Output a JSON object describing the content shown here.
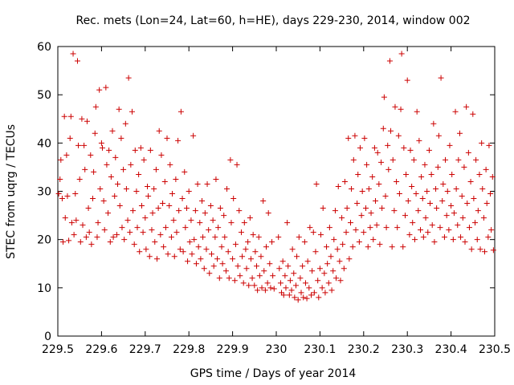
{
  "chart_data": {
    "type": "scatter",
    "title": "Rec. mets (Lon=24, Lat=60, h=HE), days 229-230, 2014, window 002",
    "xlabel": "GPS time / Days of year 2014",
    "ylabel": "STEC from uqrg / TECUs",
    "xlim": [
      229.5,
      230.5
    ],
    "ylim": [
      0,
      60
    ],
    "xticks": [
      "229.5",
      "229.6",
      "229.7",
      "229.8",
      "229.9",
      "230",
      "230.1",
      "230.2",
      "230.3",
      "230.4",
      "230.5"
    ],
    "yticks": [
      "0",
      "10",
      "20",
      "30",
      "40",
      "50",
      "60"
    ],
    "grid": false,
    "legend": "none",
    "marker": "plus",
    "color": "#cc0000",
    "points": [
      [
        229.502,
        29.5
      ],
      [
        229.505,
        32.5
      ],
      [
        229.507,
        36.5
      ],
      [
        229.51,
        28.5
      ],
      [
        229.512,
        19.5
      ],
      [
        229.515,
        45.5
      ],
      [
        229.517,
        24.5
      ],
      [
        229.52,
        37.5
      ],
      [
        229.522,
        29.0
      ],
      [
        229.525,
        19.8
      ],
      [
        229.528,
        41.0
      ],
      [
        229.53,
        45.5
      ],
      [
        229.532,
        23.5
      ],
      [
        229.535,
        58.5
      ],
      [
        229.537,
        21.0
      ],
      [
        229.54,
        29.5
      ],
      [
        229.542,
        24.0
      ],
      [
        229.545,
        57.0
      ],
      [
        229.547,
        39.5
      ],
      [
        229.55,
        32.5
      ],
      [
        229.552,
        19.5
      ],
      [
        229.555,
        45.0
      ],
      [
        229.557,
        23.0
      ],
      [
        229.56,
        39.5
      ],
      [
        229.562,
        34.5
      ],
      [
        229.565,
        20.5
      ],
      [
        229.567,
        44.5
      ],
      [
        229.57,
        26.5
      ],
      [
        229.572,
        21.5
      ],
      [
        229.575,
        37.5
      ],
      [
        229.577,
        19.0
      ],
      [
        229.58,
        28.5
      ],
      [
        229.582,
        34.0
      ],
      [
        229.585,
        42.0
      ],
      [
        229.587,
        47.5
      ],
      [
        229.59,
        20.5
      ],
      [
        229.592,
        23.5
      ],
      [
        229.595,
        51.0
      ],
      [
        229.597,
        30.5
      ],
      [
        229.6,
        40.0
      ],
      [
        229.602,
        39.0
      ],
      [
        229.605,
        28.0
      ],
      [
        229.607,
        22.0
      ],
      [
        229.61,
        51.5
      ],
      [
        229.612,
        35.5
      ],
      [
        229.615,
        25.5
      ],
      [
        229.617,
        38.5
      ],
      [
        229.62,
        19.5
      ],
      [
        229.622,
        33.0
      ],
      [
        229.625,
        42.5
      ],
      [
        229.627,
        20.5
      ],
      [
        229.63,
        29.0
      ],
      [
        229.632,
        37.0
      ],
      [
        229.635,
        21.0
      ],
      [
        229.637,
        31.5
      ],
      [
        229.64,
        47.0
      ],
      [
        229.642,
        27.0
      ],
      [
        229.645,
        41.0
      ],
      [
        229.647,
        22.5
      ],
      [
        229.65,
        34.5
      ],
      [
        229.652,
        20.0
      ],
      [
        229.655,
        44.0
      ],
      [
        229.657,
        30.5
      ],
      [
        229.66,
        24.0
      ],
      [
        229.662,
        53.5
      ],
      [
        229.665,
        21.5
      ],
      [
        229.667,
        35.5
      ],
      [
        229.67,
        46.5
      ],
      [
        229.672,
        26.0
      ],
      [
        229.675,
        19.0
      ],
      [
        229.677,
        38.5
      ],
      [
        229.68,
        30.0
      ],
      [
        229.682,
        22.5
      ],
      [
        229.685,
        33.5
      ],
      [
        229.687,
        17.5
      ],
      [
        229.69,
        39.0
      ],
      [
        229.692,
        27.0
      ],
      [
        229.695,
        21.5
      ],
      [
        229.697,
        36.5
      ],
      [
        229.7,
        24.5
      ],
      [
        229.702,
        18.0
      ],
      [
        229.705,
        31.0
      ],
      [
        229.707,
        29.0
      ],
      [
        229.71,
        16.5
      ],
      [
        229.712,
        38.5
      ],
      [
        229.715,
        22.0
      ],
      [
        229.717,
        25.5
      ],
      [
        229.72,
        30.5
      ],
      [
        229.722,
        19.5
      ],
      [
        229.725,
        34.5
      ],
      [
        229.727,
        16.0
      ],
      [
        229.73,
        26.5
      ],
      [
        229.732,
        42.5
      ],
      [
        229.735,
        21.0
      ],
      [
        229.737,
        37.5
      ],
      [
        229.74,
        27.5
      ],
      [
        229.742,
        18.5
      ],
      [
        229.745,
        32.0
      ],
      [
        229.747,
        22.5
      ],
      [
        229.75,
        41.0
      ],
      [
        229.752,
        17.0
      ],
      [
        229.755,
        27.0
      ],
      [
        229.757,
        35.5
      ],
      [
        229.76,
        20.5
      ],
      [
        229.762,
        29.5
      ],
      [
        229.765,
        24.0
      ],
      [
        229.767,
        16.5
      ],
      [
        229.77,
        32.5
      ],
      [
        229.772,
        21.5
      ],
      [
        229.775,
        40.5
      ],
      [
        229.777,
        26.0
      ],
      [
        229.78,
        18.0
      ],
      [
        229.782,
        46.5
      ],
      [
        229.785,
        28.5
      ],
      [
        229.787,
        17.5
      ],
      [
        229.79,
        34.0
      ],
      [
        229.792,
        22.5
      ],
      [
        229.795,
        26.5
      ],
      [
        229.797,
        15.5
      ],
      [
        229.8,
        30.0
      ],
      [
        229.802,
        19.5
      ],
      [
        229.805,
        24.0
      ],
      [
        229.807,
        17.0
      ],
      [
        229.81,
        41.5
      ],
      [
        229.812,
        20.0
      ],
      [
        229.815,
        26.0
      ],
      [
        229.817,
        15.0
      ],
      [
        229.82,
        31.5
      ],
      [
        229.822,
        18.5
      ],
      [
        229.825,
        23.5
      ],
      [
        229.827,
        16.0
      ],
      [
        229.83,
        28.0
      ],
      [
        229.832,
        20.5
      ],
      [
        229.835,
        14.0
      ],
      [
        229.837,
        25.5
      ],
      [
        229.84,
        18.0
      ],
      [
        229.842,
        31.5
      ],
      [
        229.845,
        22.0
      ],
      [
        229.847,
        13.0
      ],
      [
        229.85,
        27.0
      ],
      [
        229.852,
        17.0
      ],
      [
        229.855,
        24.0
      ],
      [
        229.857,
        14.5
      ],
      [
        229.86,
        20.5
      ],
      [
        229.862,
        32.5
      ],
      [
        229.865,
        16.0
      ],
      [
        229.867,
        22.5
      ],
      [
        229.87,
        12.0
      ],
      [
        229.872,
        26.5
      ],
      [
        229.875,
        18.5
      ],
      [
        229.877,
        15.0
      ],
      [
        229.88,
        25.0
      ],
      [
        229.882,
        20.5
      ],
      [
        229.885,
        13.5
      ],
      [
        229.887,
        30.5
      ],
      [
        229.89,
        17.5
      ],
      [
        229.892,
        12.0
      ],
      [
        229.895,
        36.5
      ],
      [
        229.897,
        23.5
      ],
      [
        229.9,
        16.0
      ],
      [
        229.902,
        28.5
      ],
      [
        229.905,
        11.5
      ],
      [
        229.907,
        19.0
      ],
      [
        229.91,
        35.5
      ],
      [
        229.912,
        14.5
      ],
      [
        229.915,
        26.0
      ],
      [
        229.917,
        12.5
      ],
      [
        229.92,
        21.5
      ],
      [
        229.922,
        16.5
      ],
      [
        229.925,
        11.0
      ],
      [
        229.927,
        23.5
      ],
      [
        229.93,
        18.0
      ],
      [
        229.932,
        14.0
      ],
      [
        229.935,
        19.5
      ],
      [
        229.937,
        10.5
      ],
      [
        229.94,
        24.5
      ],
      [
        229.942,
        16.0
      ],
      [
        229.945,
        12.0
      ],
      [
        229.947,
        21.0
      ],
      [
        229.95,
        10.5
      ],
      [
        229.952,
        17.5
      ],
      [
        229.955,
        14.5
      ],
      [
        229.957,
        9.5
      ],
      [
        229.96,
        20.5
      ],
      [
        229.962,
        12.5
      ],
      [
        229.965,
        16.5
      ],
      [
        229.967,
        10.0
      ],
      [
        229.97,
        28.0
      ],
      [
        229.972,
        13.5
      ],
      [
        229.975,
        9.5
      ],
      [
        229.977,
        18.5
      ],
      [
        229.98,
        11.0
      ],
      [
        229.982,
        25.5
      ],
      [
        229.985,
        15.0
      ],
      [
        229.987,
        10.0
      ],
      [
        229.99,
        19.5
      ],
      [
        229.992,
        12.5
      ],
      [
        229.995,
        9.8
      ],
      [
        230.005,
        20.5
      ],
      [
        230.007,
        14.0
      ],
      [
        230.01,
        11.0
      ],
      [
        230.012,
        9.0
      ],
      [
        230.015,
        15.5
      ],
      [
        230.017,
        8.5
      ],
      [
        230.02,
        12.5
      ],
      [
        230.022,
        10.0
      ],
      [
        230.025,
        23.5
      ],
      [
        230.027,
        14.5
      ],
      [
        230.03,
        8.5
      ],
      [
        230.032,
        11.5
      ],
      [
        230.035,
        9.5
      ],
      [
        230.037,
        18.0
      ],
      [
        230.04,
        13.0
      ],
      [
        230.042,
        8.0
      ],
      [
        230.045,
        10.5
      ],
      [
        230.047,
        16.5
      ],
      [
        230.05,
        7.5
      ],
      [
        230.052,
        20.5
      ],
      [
        230.055,
        12.0
      ],
      [
        230.057,
        9.0
      ],
      [
        230.06,
        14.5
      ],
      [
        230.062,
        8.0
      ],
      [
        230.065,
        19.5
      ],
      [
        230.067,
        11.0
      ],
      [
        230.07,
        7.8
      ],
      [
        230.072,
        15.5
      ],
      [
        230.075,
        10.0
      ],
      [
        230.077,
        22.5
      ],
      [
        230.08,
        8.5
      ],
      [
        230.082,
        13.5
      ],
      [
        230.085,
        21.5
      ],
      [
        230.087,
        9.0
      ],
      [
        230.09,
        17.5
      ],
      [
        230.092,
        31.5
      ],
      [
        230.095,
        11.5
      ],
      [
        230.097,
        8.0
      ],
      [
        230.1,
        14.0
      ],
      [
        230.102,
        21.0
      ],
      [
        230.105,
        10.0
      ],
      [
        230.107,
        26.5
      ],
      [
        230.11,
        13.0
      ],
      [
        230.112,
        9.0
      ],
      [
        230.115,
        18.5
      ],
      [
        230.117,
        15.0
      ],
      [
        230.12,
        11.0
      ],
      [
        230.122,
        22.5
      ],
      [
        230.125,
        16.5
      ],
      [
        230.127,
        9.5
      ],
      [
        230.13,
        13.5
      ],
      [
        230.132,
        20.0
      ],
      [
        230.135,
        26.0
      ],
      [
        230.137,
        12.0
      ],
      [
        230.14,
        18.0
      ],
      [
        230.142,
        31.0
      ],
      [
        230.145,
        15.5
      ],
      [
        230.147,
        11.5
      ],
      [
        230.15,
        24.5
      ],
      [
        230.152,
        19.0
      ],
      [
        230.155,
        14.0
      ],
      [
        230.157,
        32.0
      ],
      [
        230.16,
        21.5
      ],
      [
        230.162,
        26.5
      ],
      [
        230.165,
        41.0
      ],
      [
        230.167,
        16.0
      ],
      [
        230.17,
        23.5
      ],
      [
        230.172,
        30.5
      ],
      [
        230.175,
        18.5
      ],
      [
        230.177,
        36.5
      ],
      [
        230.18,
        41.5
      ],
      [
        230.182,
        22.0
      ],
      [
        230.185,
        27.5
      ],
      [
        230.187,
        33.5
      ],
      [
        230.19,
        19.5
      ],
      [
        230.192,
        39.0
      ],
      [
        230.195,
        25.0
      ],
      [
        230.197,
        30.0
      ],
      [
        230.2,
        21.5
      ],
      [
        230.202,
        41.0
      ],
      [
        230.205,
        26.5
      ],
      [
        230.207,
        35.5
      ],
      [
        230.21,
        18.5
      ],
      [
        230.212,
        30.5
      ],
      [
        230.215,
        22.5
      ],
      [
        230.217,
        25.5
      ],
      [
        230.22,
        33.0
      ],
      [
        230.222,
        20.0
      ],
      [
        230.225,
        39.0
      ],
      [
        230.227,
        28.0
      ],
      [
        230.23,
        23.0
      ],
      [
        230.232,
        38.0
      ],
      [
        230.235,
        31.5
      ],
      [
        230.237,
        19.0
      ],
      [
        230.24,
        36.0
      ],
      [
        230.242,
        26.5
      ],
      [
        230.245,
        43.0
      ],
      [
        230.247,
        49.5
      ],
      [
        230.25,
        29.0
      ],
      [
        230.252,
        22.5
      ],
      [
        230.255,
        39.5
      ],
      [
        230.257,
        34.5
      ],
      [
        230.26,
        57.0
      ],
      [
        230.262,
        42.5
      ],
      [
        230.265,
        18.5
      ],
      [
        230.267,
        36.5
      ],
      [
        230.27,
        26.0
      ],
      [
        230.272,
        47.5
      ],
      [
        230.275,
        32.0
      ],
      [
        230.277,
        22.5
      ],
      [
        230.28,
        41.5
      ],
      [
        230.282,
        29.5
      ],
      [
        230.285,
        47.0
      ],
      [
        230.287,
        58.5
      ],
      [
        230.29,
        18.5
      ],
      [
        230.292,
        39.0
      ],
      [
        230.295,
        25.0
      ],
      [
        230.297,
        33.5
      ],
      [
        230.3,
        53.0
      ],
      [
        230.302,
        28.0
      ],
      [
        230.305,
        21.0
      ],
      [
        230.307,
        38.5
      ],
      [
        230.31,
        31.0
      ],
      [
        230.312,
        23.5
      ],
      [
        230.315,
        36.5
      ],
      [
        230.317,
        20.0
      ],
      [
        230.32,
        29.5
      ],
      [
        230.322,
        46.5
      ],
      [
        230.325,
        26.0
      ],
      [
        230.327,
        40.5
      ],
      [
        230.33,
        22.0
      ],
      [
        230.332,
        33.0
      ],
      [
        230.335,
        28.5
      ],
      [
        230.337,
        20.5
      ],
      [
        230.34,
        35.5
      ],
      [
        230.342,
        24.5
      ],
      [
        230.345,
        30.0
      ],
      [
        230.347,
        21.5
      ],
      [
        230.35,
        38.5
      ],
      [
        230.352,
        27.5
      ],
      [
        230.355,
        33.5
      ],
      [
        230.357,
        23.0
      ],
      [
        230.36,
        44.0
      ],
      [
        230.362,
        19.5
      ],
      [
        230.365,
        30.5
      ],
      [
        230.367,
        26.5
      ],
      [
        230.37,
        35.0
      ],
      [
        230.372,
        41.5
      ],
      [
        230.375,
        22.5
      ],
      [
        230.377,
        53.5
      ],
      [
        230.38,
        28.0
      ],
      [
        230.382,
        31.5
      ],
      [
        230.385,
        20.5
      ],
      [
        230.387,
        36.5
      ],
      [
        230.39,
        25.0
      ],
      [
        230.392,
        30.0
      ],
      [
        230.395,
        22.0
      ],
      [
        230.397,
        39.5
      ],
      [
        230.4,
        27.0
      ],
      [
        230.402,
        33.5
      ],
      [
        230.405,
        20.0
      ],
      [
        230.407,
        25.5
      ],
      [
        230.41,
        46.5
      ],
      [
        230.412,
        30.5
      ],
      [
        230.415,
        23.0
      ],
      [
        230.417,
        36.5
      ],
      [
        230.42,
        42.0
      ],
      [
        230.422,
        20.5
      ],
      [
        230.425,
        29.0
      ],
      [
        230.427,
        24.5
      ],
      [
        230.43,
        35.0
      ],
      [
        230.432,
        19.5
      ],
      [
        230.435,
        47.5
      ],
      [
        230.437,
        27.5
      ],
      [
        230.44,
        38.0
      ],
      [
        230.442,
        22.5
      ],
      [
        230.445,
        32.0
      ],
      [
        230.447,
        18.0
      ],
      [
        230.45,
        46.0
      ],
      [
        230.452,
        28.5
      ],
      [
        230.455,
        23.5
      ],
      [
        230.457,
        36.5
      ],
      [
        230.46,
        20.0
      ],
      [
        230.462,
        26.0
      ],
      [
        230.465,
        33.5
      ],
      [
        230.467,
        18.0
      ],
      [
        230.47,
        40.0
      ],
      [
        230.472,
        30.5
      ],
      [
        230.475,
        24.5
      ],
      [
        230.477,
        17.5
      ],
      [
        230.48,
        34.5
      ],
      [
        230.482,
        27.5
      ],
      [
        230.485,
        20.5
      ],
      [
        230.487,
        39.5
      ],
      [
        230.49,
        29.5
      ],
      [
        230.492,
        22.0
      ],
      [
        230.495,
        33.0
      ],
      [
        230.497,
        17.8
      ]
    ]
  }
}
